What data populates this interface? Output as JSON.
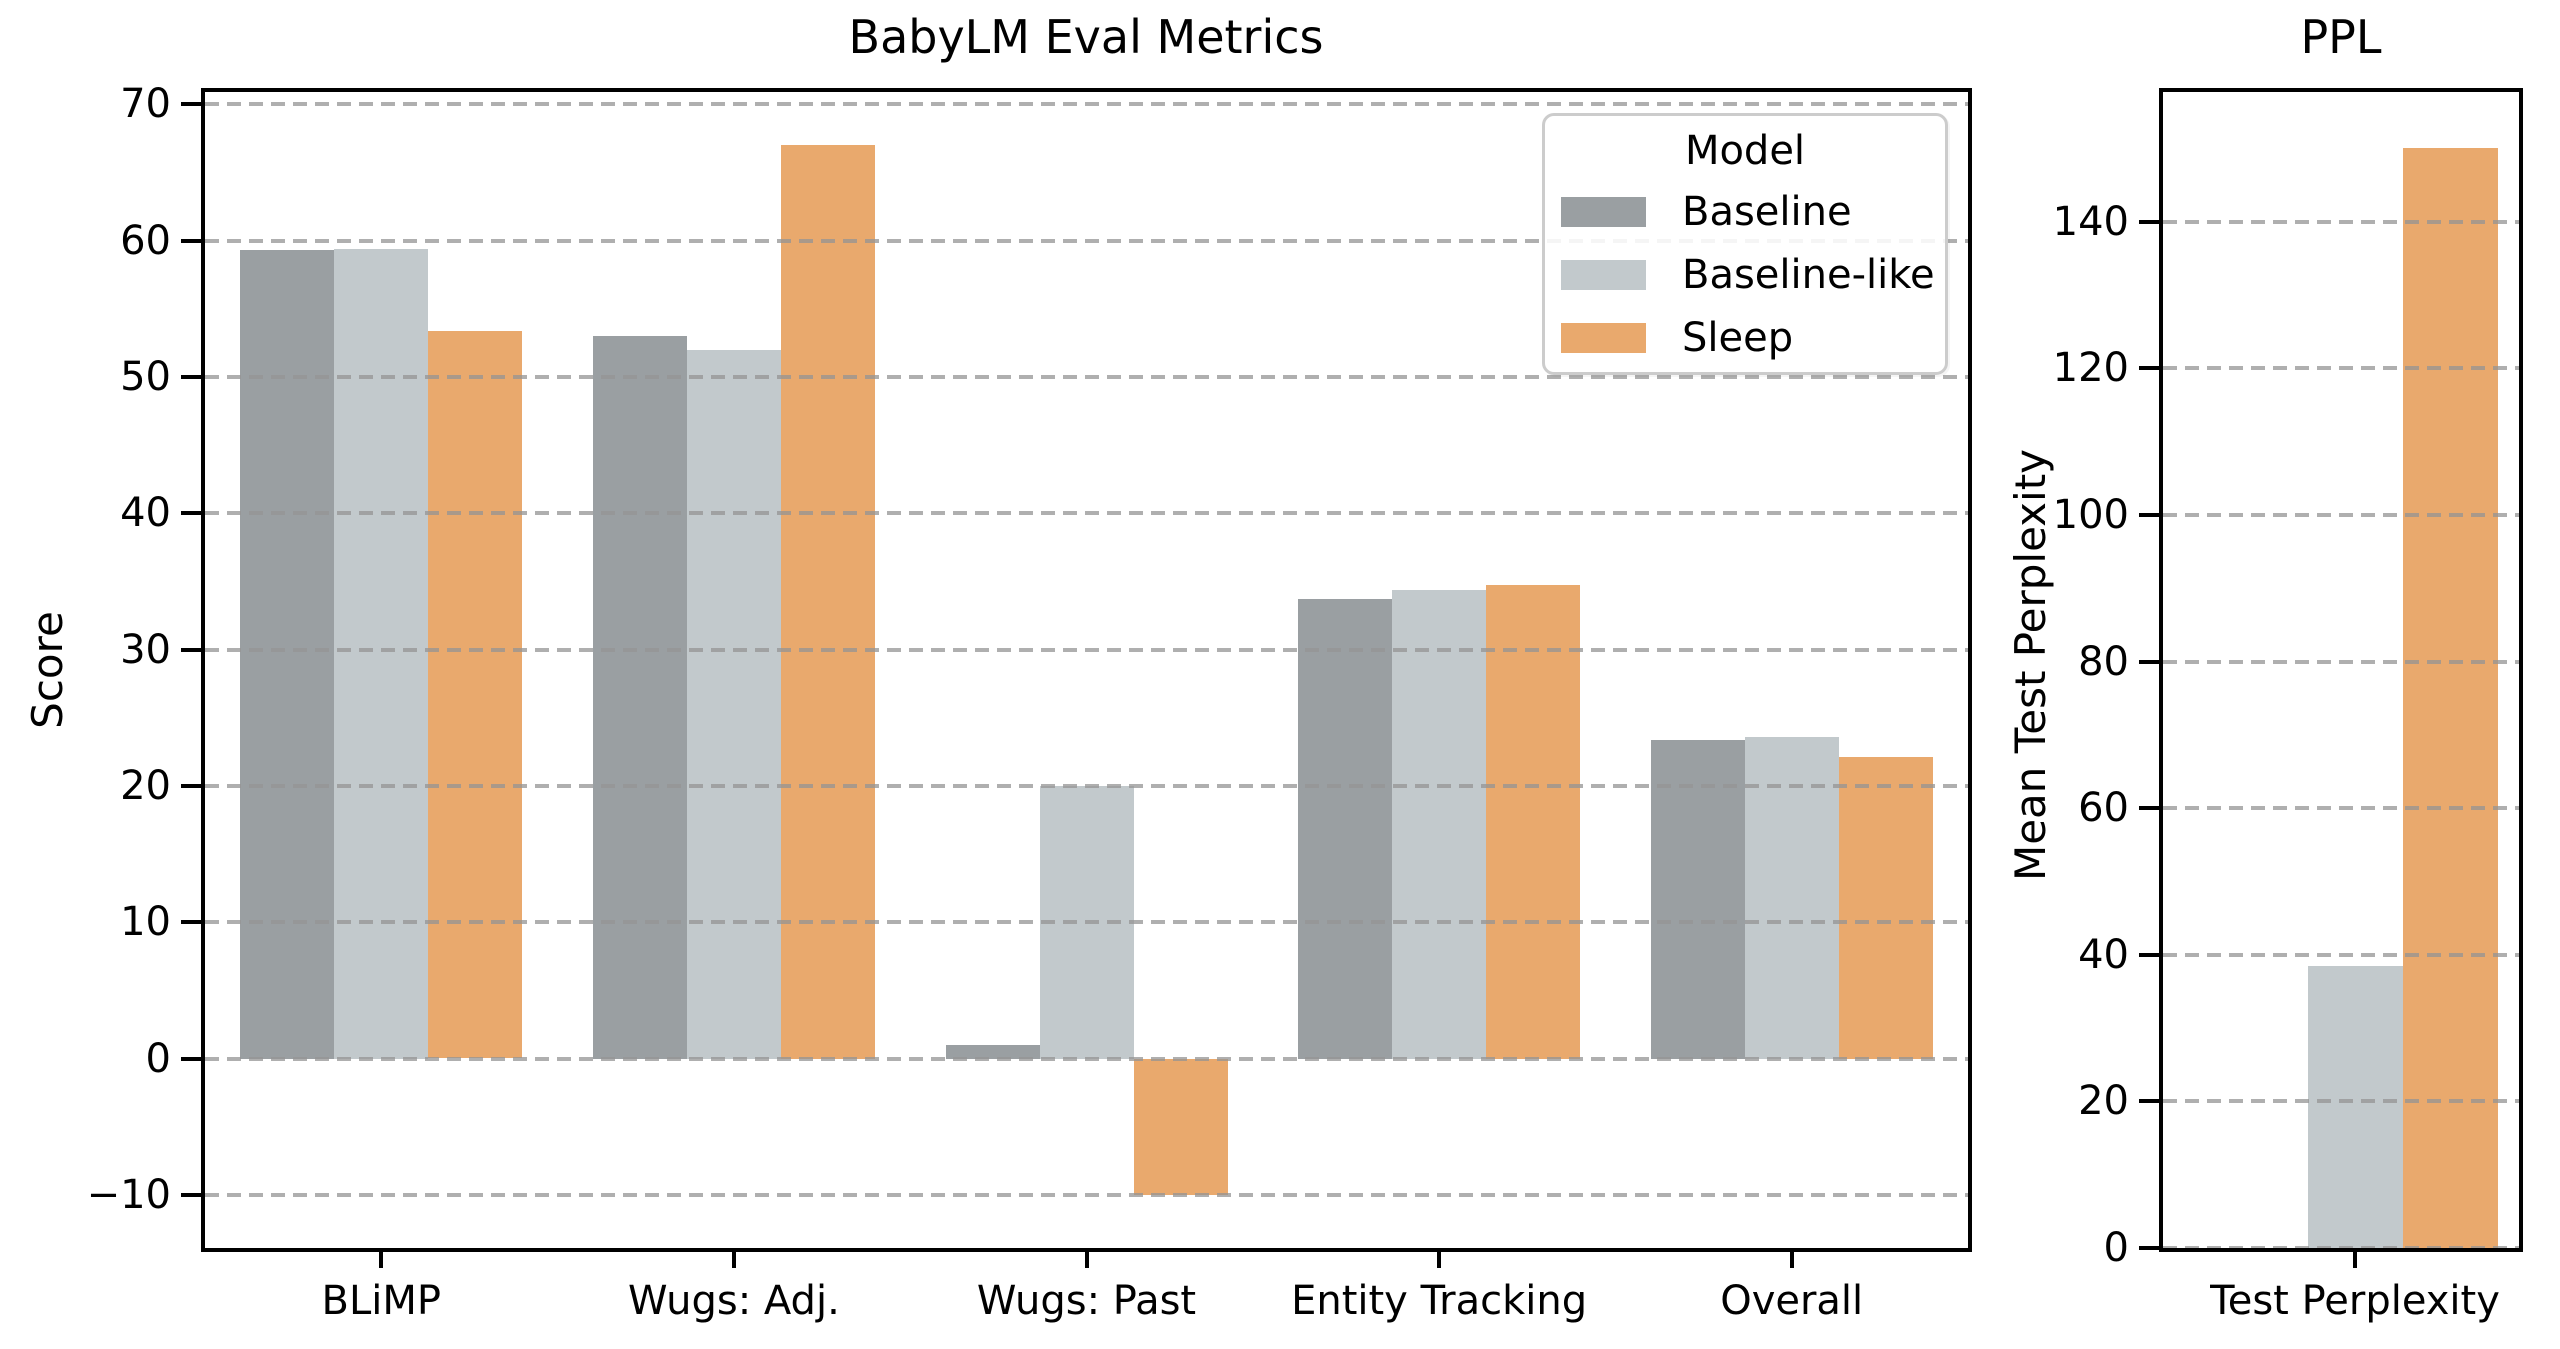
{
  "chart_data": [
    {
      "type": "bar",
      "title": "BabyLM Eval Metrics",
      "xlabel": "",
      "ylabel": "Score",
      "categories": [
        "BLiMP",
        "Wugs: Adj.",
        "Wugs: Past",
        "Entity Tracking",
        "Overall"
      ],
      "series": [
        {
          "name": "Baseline",
          "color": "#9A9FA2",
          "values": [
            59.3,
            53.0,
            1.0,
            33.7,
            23.4
          ]
        },
        {
          "name": "Baseline-like",
          "color": "#C2C9CC",
          "values": [
            59.4,
            52.0,
            20.0,
            34.4,
            23.6
          ]
        },
        {
          "name": "Sleep",
          "color": "#E9A96D",
          "values": [
            53.4,
            67.0,
            -10.0,
            34.7,
            22.1
          ]
        }
      ],
      "yticks": [
        -10,
        0,
        10,
        20,
        30,
        40,
        50,
        60,
        70
      ],
      "ylim": [
        -13.9,
        70.9
      ],
      "grid": {
        "axis": "y",
        "style": "dashed",
        "color": "#ABABAB",
        "over_bars": true
      },
      "legend": {
        "title": "Model",
        "position": "upper right",
        "entries": [
          "Baseline",
          "Baseline-like",
          "Sleep"
        ]
      }
    },
    {
      "type": "bar",
      "title": "PPL",
      "xlabel": "",
      "ylabel": "Mean Test Perplexity",
      "categories": [
        "Test Perplexity"
      ],
      "series": [
        {
          "name": "Baseline",
          "color": "#9A9FA2",
          "values": [
            0
          ]
        },
        {
          "name": "Baseline-like",
          "color": "#C2C9CC",
          "values": [
            38.5
          ]
        },
        {
          "name": "Sleep",
          "color": "#E9A96D",
          "values": [
            150.1
          ]
        }
      ],
      "yticks": [
        0,
        20,
        40,
        60,
        80,
        100,
        120,
        140
      ],
      "ylim": [
        0,
        157.7
      ],
      "grid": {
        "axis": "y",
        "style": "dashed",
        "color": "#ABABAB",
        "over_bars": true
      },
      "legend": null
    }
  ]
}
